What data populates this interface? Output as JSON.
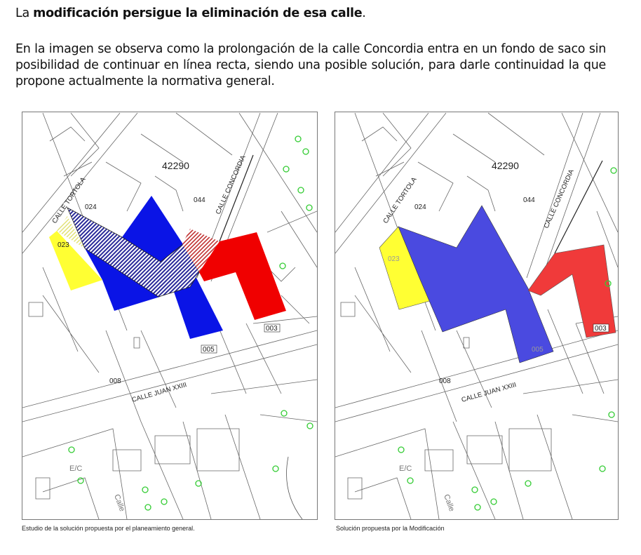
{
  "intro": {
    "prefix": "La ",
    "bold": "modificación persigue la eliminación de esa calle",
    "suffix": "."
  },
  "paragraph": "En la imagen se observa como la prolongación de la calle Concordia entra en un fondo de saco sin posibilidad de continuar en línea recta, siendo una posible solución, para darle continuidad la que propone actualmente la normativa general.",
  "maps": [
    {
      "caption": "Estudio de la solución propuesta por el planeamiento general.",
      "labels": {
        "block": "42290",
        "p024": "024",
        "p044": "044",
        "p023": "023",
        "p005": "005",
        "p003": "003",
        "p008": "008",
        "tortola": "CALLE   TORTOLA",
        "concordia": "CALLE CONCORDIA",
        "juan": "CALLE     JUAN  XXIII",
        "calle": "Calle",
        "ec": "E/C"
      }
    },
    {
      "caption": "Solución propuesta por la Modificación",
      "labels": {
        "block": "42290",
        "p024": "024",
        "p044": "044",
        "p023": "023",
        "p005": "005",
        "p003": "003",
        "p008": "008",
        "tortola": "CALLE   TORTOLA",
        "concordia": "CALLE CONCORDIA",
        "juan": "CALLE     JUAN  XXIII",
        "calle": "Calle",
        "ec": "E/C"
      }
    }
  ],
  "colors": {
    "blue": "#0a14e6",
    "red": "#f00000",
    "yellow": "#ffff33",
    "tree": "#33cc33",
    "blue_modified": "#4a4ae0",
    "red_modified": "#f03a3a"
  }
}
